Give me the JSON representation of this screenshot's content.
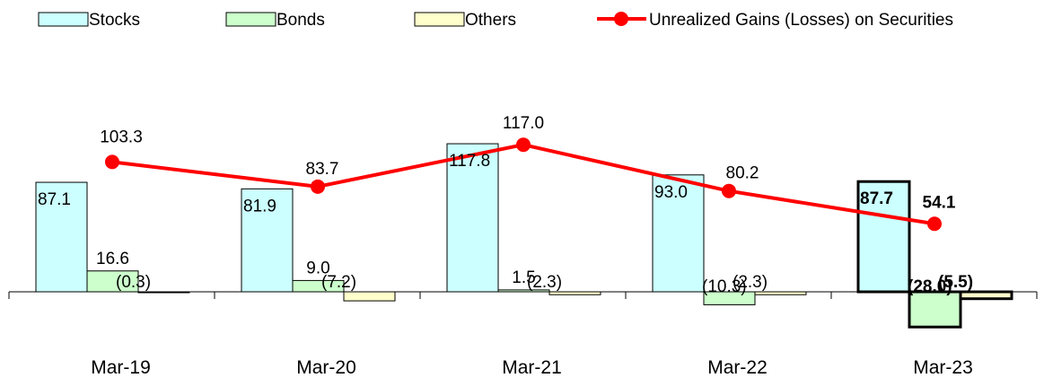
{
  "chart_data": {
    "type": "bar",
    "categories": [
      "Mar-19",
      "Mar-20",
      "Mar-21",
      "Mar-22",
      "Mar-23"
    ],
    "series": [
      {
        "name": "Stocks",
        "kind": "bar",
        "color": "#ccffff",
        "values": [
          87.1,
          81.9,
          117.8,
          93.0,
          87.7
        ],
        "labels": [
          "87.1",
          "81.9",
          "117.8",
          "93.0",
          "87.7"
        ]
      },
      {
        "name": "Bonds",
        "kind": "bar",
        "color": "#ccffcc",
        "values": [
          16.6,
          9.0,
          1.5,
          -10.3,
          -28.0
        ],
        "labels": [
          "16.6",
          "9.0",
          "1.5",
          "(10.3)",
          "(28.0)"
        ]
      },
      {
        "name": "Others",
        "kind": "bar",
        "color": "#ffffcc",
        "values": [
          -0.3,
          -7.2,
          -2.3,
          -2.3,
          -5.5
        ],
        "labels": [
          "(0.3)",
          "(7.2)",
          "(2.3)",
          "(2.3)",
          "(5.5)"
        ]
      },
      {
        "name": "Unrealized Gains (Losses) on Securities",
        "kind": "line",
        "color": "#ff0000",
        "values": [
          103.3,
          83.7,
          117.0,
          80.2,
          54.1
        ],
        "labels": [
          "103.3",
          "83.7",
          "117.0",
          "80.2",
          "54.1"
        ]
      }
    ],
    "highlight_category_index": 4,
    "ylim": [
      -35,
      130
    ],
    "legend_position": "top",
    "grid": false
  }
}
